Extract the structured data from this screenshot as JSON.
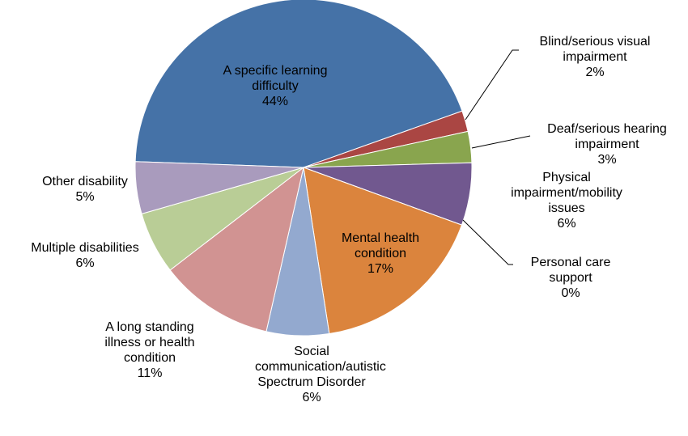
{
  "chart_data": {
    "type": "pie",
    "categories": [
      "A specific learning difficulty",
      "Blind/serious visual impairment",
      "Deaf/serious hearing impairment",
      "Physical impairment/mobility issues",
      "Personal care support",
      "Mental health condition",
      "Social communication/autistic Spectrum Disorder",
      "A long standing illness or health condition",
      "Multiple disabilities",
      "Other disability"
    ],
    "values": [
      44,
      2,
      3,
      6,
      0,
      17,
      6,
      11,
      6,
      5
    ],
    "value_labels": [
      "44%",
      "2%",
      "3%",
      "6%",
      "0%",
      "17%",
      "6%",
      "11%",
      "6%",
      "5%"
    ],
    "colors": [
      "#4572a7",
      "#aa4643",
      "#89a54e",
      "#71588f",
      "#4198af",
      "#db843d",
      "#93a9cf",
      "#d19392",
      "#b9cd96",
      "#a99bbd"
    ]
  }
}
